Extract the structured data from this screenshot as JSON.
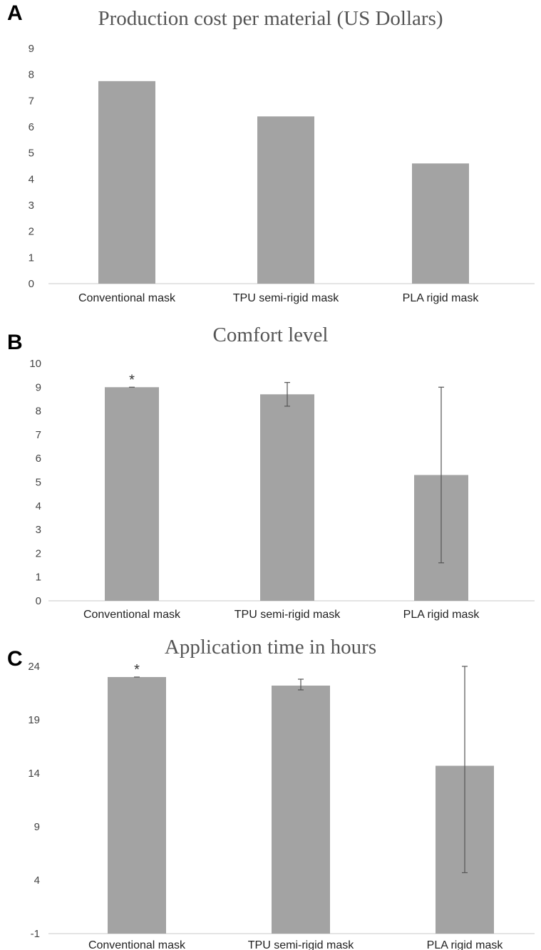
{
  "panels": [
    {
      "letter": "A"
    },
    {
      "letter": "B"
    },
    {
      "letter": "C"
    }
  ],
  "chart_data": [
    {
      "type": "bar",
      "title": "Production cost per material (US Dollars)",
      "categories": [
        "Conventional mask",
        "TPU semi-rigid mask",
        "PLA rigid mask"
      ],
      "values": [
        7.75,
        6.4,
        4.6
      ],
      "ylim": [
        0,
        9
      ],
      "yticks": [
        0,
        1,
        2,
        3,
        4,
        5,
        6,
        7,
        8,
        9
      ],
      "bar_color": "#a3a3a3",
      "grid": false
    },
    {
      "type": "bar",
      "title": "Comfort level",
      "categories": [
        "Conventional mask",
        "TPU semi-rigid mask",
        "PLA rigid mask"
      ],
      "values": [
        9.0,
        8.7,
        5.3
      ],
      "errors": [
        [
          9.0,
          9.0
        ],
        [
          8.2,
          9.2
        ],
        [
          1.6,
          9.0
        ]
      ],
      "annotations": [
        "*",
        "",
        ""
      ],
      "ylim": [
        0,
        10
      ],
      "yticks": [
        0,
        1,
        2,
        3,
        4,
        5,
        6,
        7,
        8,
        9,
        10
      ],
      "bar_color": "#a3a3a3",
      "grid": false
    },
    {
      "type": "bar",
      "title": "Application time in hours",
      "categories": [
        "Conventional mask",
        "TPU semi-rigid mask",
        "PLA rigid mask"
      ],
      "values": [
        23.0,
        22.2,
        14.7
      ],
      "errors": [
        [
          23.0,
          23.0
        ],
        [
          21.8,
          22.8
        ],
        [
          4.7,
          24.0
        ]
      ],
      "annotations": [
        "*",
        "",
        ""
      ],
      "ylim": [
        -1,
        24
      ],
      "yticks": [
        -1,
        4,
        9,
        14,
        19,
        24
      ],
      "bar_color": "#a3a3a3",
      "grid": false
    }
  ]
}
